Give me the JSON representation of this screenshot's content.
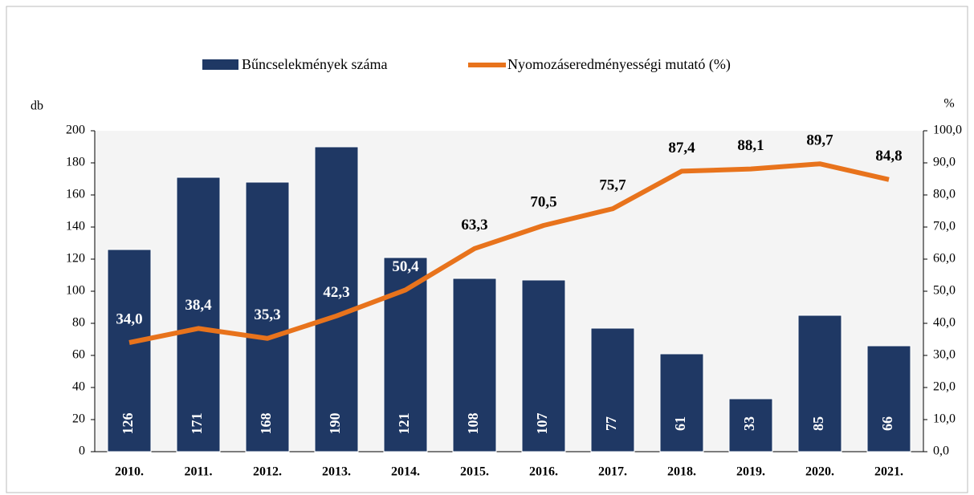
{
  "chart_data": {
    "type": "bar_line",
    "categories": [
      "2010.",
      "2011.",
      "2012.",
      "2013.",
      "2014.",
      "2015.",
      "2016.",
      "2017.",
      "2018.",
      "2019.",
      "2020.",
      "2021."
    ],
    "ylabel": "db",
    "y2label": "%",
    "series": [
      {
        "name": "Bűncselekmények száma",
        "type": "bar",
        "color": "#1f3864",
        "values": [
          126,
          171,
          168,
          190,
          121,
          108,
          107,
          77,
          61,
          33,
          85,
          66
        ]
      },
      {
        "name": "Nyomozáseredményességi mutató (%)",
        "type": "line",
        "axis": "y2",
        "color": "#e8731c",
        "values": [
          34.0,
          38.4,
          35.3,
          42.3,
          50.4,
          63.3,
          70.5,
          75.7,
          87.4,
          88.1,
          89.7,
          84.8
        ],
        "value_labels": [
          "34,0",
          "38,4",
          "35,3",
          "42,3",
          "50,4",
          "63,3",
          "70,5",
          "75,7",
          "87,4",
          "88,1",
          "89,7",
          "84,8"
        ]
      }
    ],
    "ylim": [
      0,
      200
    ],
    "yticks": [
      0,
      20,
      40,
      60,
      80,
      100,
      120,
      140,
      160,
      180,
      200
    ],
    "y2lim": [
      0,
      100
    ],
    "y2ticks": [
      {
        "value": 0,
        "label": "0,0"
      },
      {
        "value": 10,
        "label": "10,0"
      },
      {
        "value": 20,
        "label": "20,0"
      },
      {
        "value": 30,
        "label": "30,0"
      },
      {
        "value": 40,
        "label": "40,0"
      },
      {
        "value": 50,
        "label": "50,0"
      },
      {
        "value": 60,
        "label": "60,0"
      },
      {
        "value": 70,
        "label": "70,0"
      },
      {
        "value": 80,
        "label": "80,0"
      },
      {
        "value": 90,
        "label": "90,0"
      },
      {
        "value": 100,
        "label": "100,0"
      }
    ],
    "legend": "top"
  }
}
